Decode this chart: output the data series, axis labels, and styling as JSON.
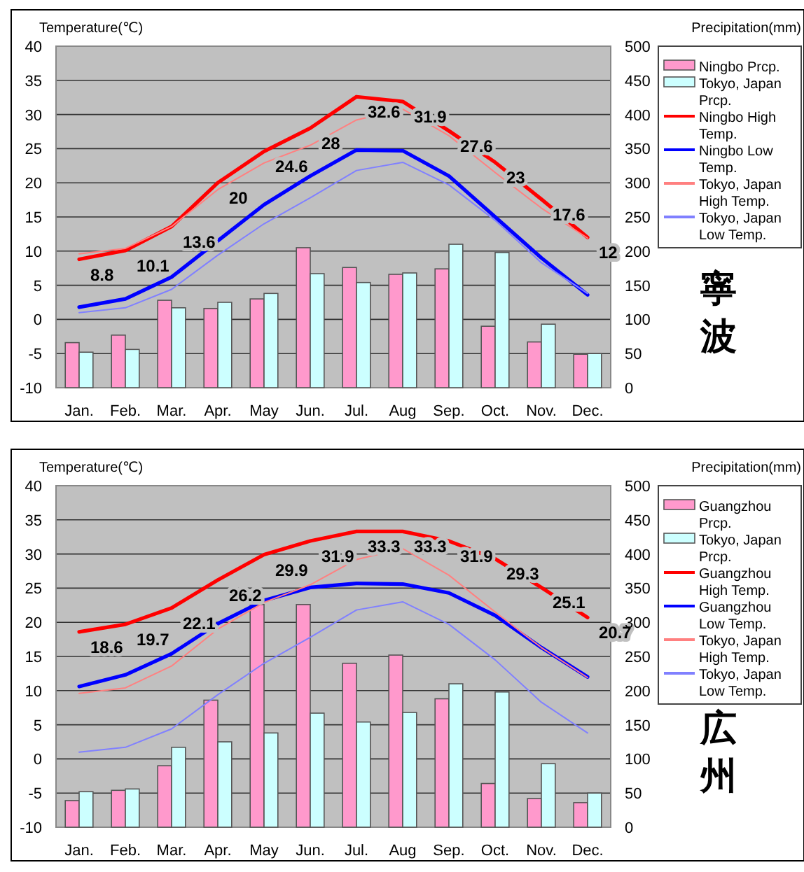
{
  "chart_data": [
    {
      "type": "bar",
      "ylabel": "Temperature(℃)",
      "y2label": "Precipitation(mm)",
      "categories": [
        "Jan.",
        "Feb.",
        "Mar.",
        "Apr.",
        "May",
        "Jun.",
        "Jul.",
        "Aug",
        "Sep.",
        "Oct.",
        "Nov.",
        "Dec."
      ],
      "ylim": [
        -10,
        40
      ],
      "yticks": [
        -10,
        -5,
        0,
        5,
        10,
        15,
        20,
        25,
        30,
        35,
        40
      ],
      "y2lim": [
        0,
        500
      ],
      "y2ticks": [
        0,
        50,
        100,
        150,
        200,
        250,
        300,
        350,
        400,
        450,
        500
      ],
      "grid": "y",
      "legend": "right",
      "marker": "none",
      "line_style": "solid",
      "annotations": [
        "寧波"
      ],
      "series": [
        {
          "name": "Ningbo Prcp.",
          "axis": "y2",
          "color": "#ff99cc",
          "values": [
            66,
            77,
            128,
            116,
            130,
            205,
            176,
            166,
            174,
            90,
            67,
            49
          ]
        },
        {
          "name": "Tokyo, Japan Prcp.",
          "axis": "y2",
          "color": "#ccffff",
          "values": [
            52,
            56,
            117,
            125,
            138,
            167,
            154,
            168,
            210,
            198,
            93,
            50
          ]
        },
        {
          "name": "Ningbo High Temp.",
          "type": "line",
          "color": "#ff0000",
          "values": [
            8.8,
            10.1,
            13.6,
            20,
            24.6,
            28,
            32.6,
            31.9,
            27.6,
            23,
            17.6,
            12
          ],
          "value_labels": [
            "8.8",
            "10.1",
            "13.6",
            "20",
            "24.6",
            "28",
            "32.6",
            "31.9",
            "27.6",
            "23",
            "17.6",
            "12"
          ]
        },
        {
          "name": "Ningbo Low Temp.",
          "type": "line",
          "color": "#0000ff",
          "values": [
            1.8,
            3.0,
            6.2,
            11.5,
            16.8,
            21,
            24.8,
            24.7,
            21,
            15,
            9.0,
            3.6
          ]
        },
        {
          "name": "Tokyo, Japan High Temp.",
          "type": "line",
          "color": "#ff8080",
          "values": [
            9.6,
            10.4,
            13.6,
            19.0,
            22.9,
            25.5,
            29.2,
            30.8,
            26.9,
            21.5,
            16.3,
            11.9
          ]
        },
        {
          "name": "Tokyo, Japan Low Temp.",
          "type": "line",
          "color": "#8080ff",
          "values": [
            1.0,
            1.7,
            4.4,
            9.4,
            14.0,
            17.8,
            21.8,
            23.0,
            19.7,
            14.5,
            8.3,
            3.8
          ]
        }
      ]
    },
    {
      "type": "bar",
      "ylabel": "Temperature(℃)",
      "y2label": "Precipitation(mm)",
      "categories": [
        "Jan.",
        "Feb.",
        "Mar.",
        "Apr.",
        "May",
        "Jun.",
        "Jul.",
        "Aug",
        "Sep.",
        "Oct.",
        "Nov.",
        "Dec."
      ],
      "ylim": [
        -10,
        40
      ],
      "yticks": [
        -10,
        -5,
        0,
        5,
        10,
        15,
        20,
        25,
        30,
        35,
        40
      ],
      "y2lim": [
        0,
        500
      ],
      "y2ticks": [
        0,
        50,
        100,
        150,
        200,
        250,
        300,
        350,
        400,
        450,
        500
      ],
      "grid": "y",
      "legend": "right",
      "marker": "none",
      "line_style": "solid",
      "annotations": [
        "広州"
      ],
      "series": [
        {
          "name": "Guangzhou Prcp.",
          "axis": "y2",
          "color": "#ff99cc",
          "values": [
            39,
            54,
            90,
            186,
            326,
            326,
            240,
            252,
            188,
            64,
            42,
            36
          ]
        },
        {
          "name": "Tokyo, Japan Prcp.",
          "axis": "y2",
          "color": "#ccffff",
          "values": [
            52,
            56,
            117,
            125,
            138,
            167,
            154,
            168,
            210,
            198,
            93,
            50
          ]
        },
        {
          "name": "Guangzhou High Temp.",
          "type": "line",
          "color": "#ff0000",
          "values": [
            18.6,
            19.7,
            22.1,
            26.2,
            29.9,
            31.9,
            33.3,
            33.3,
            31.9,
            29.3,
            25.1,
            20.7
          ],
          "value_labels": [
            "18.6",
            "19.7",
            "22.1",
            "26.2",
            "29.9",
            "31.9",
            "33.3",
            "33.3",
            "31.9",
            "29.3",
            "25.1",
            "20.7"
          ]
        },
        {
          "name": "Guangzhou Low Temp.",
          "type": "line",
          "color": "#0000ff",
          "values": [
            10.6,
            12.3,
            15.4,
            19.8,
            23.2,
            25.1,
            25.7,
            25.6,
            24.3,
            21.0,
            16.3,
            12.0
          ]
        },
        {
          "name": "Tokyo, Japan High Temp.",
          "type": "line",
          "color": "#ff8080",
          "values": [
            9.6,
            10.4,
            13.6,
            19.0,
            22.9,
            25.5,
            29.2,
            30.8,
            26.9,
            21.5,
            16.3,
            11.9
          ]
        },
        {
          "name": "Tokyo, Japan Low Temp.",
          "type": "line",
          "color": "#8080ff",
          "values": [
            1.0,
            1.7,
            4.4,
            9.4,
            14.0,
            17.8,
            21.8,
            23.0,
            19.7,
            14.5,
            8.3,
            3.8
          ]
        }
      ]
    }
  ]
}
